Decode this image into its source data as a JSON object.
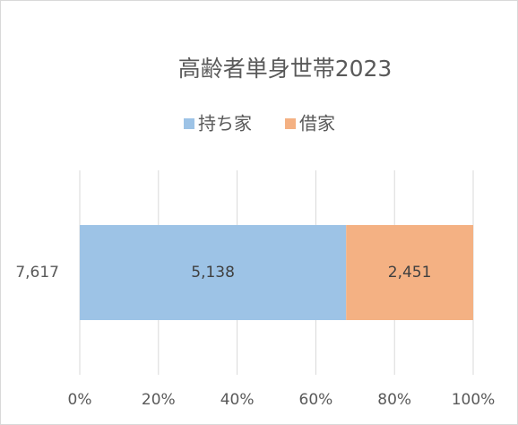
{
  "chart_data": {
    "type": "bar",
    "orientation": "horizontal",
    "stack": "percent",
    "title": "高齢者単身世帯2023",
    "categories": [
      "7,617"
    ],
    "series": [
      {
        "name": "持ち家",
        "color": "#9dc3e6",
        "values": [
          5138
        ],
        "value_labels": [
          "5,138"
        ]
      },
      {
        "name": "借家",
        "color": "#f4b183",
        "values": [
          2451
        ],
        "value_labels": [
          "2,451"
        ]
      }
    ],
    "xlim": [
      0,
      100
    ],
    "xticks": [
      {
        "value": 0,
        "label": "0%"
      },
      {
        "value": 20,
        "label": "20%"
      },
      {
        "value": 40,
        "label": "40%"
      },
      {
        "value": 60,
        "label": "60%"
      },
      {
        "value": 80,
        "label": "80%"
      },
      {
        "value": 100,
        "label": "100%"
      }
    ],
    "grid": true,
    "legend": "top"
  }
}
